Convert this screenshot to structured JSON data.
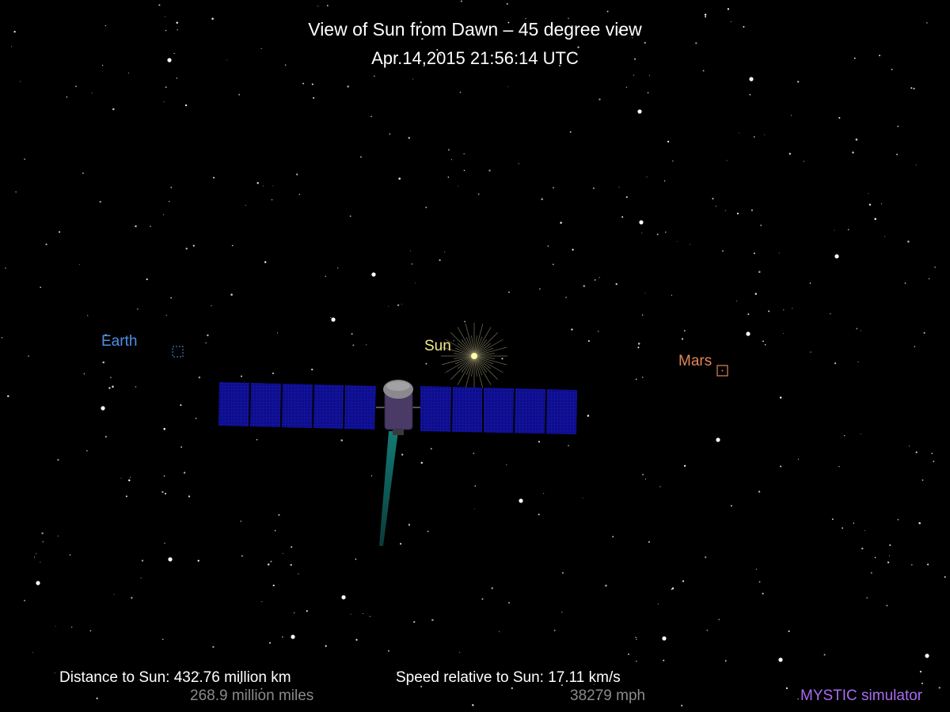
{
  "header": {
    "title": "View of Sun from Dawn – 45 degree view",
    "timestamp": "Apr.14,2015 21:56:14  UTC"
  },
  "labels": {
    "earth": "Earth",
    "sun": "Sun",
    "mars": "Mars"
  },
  "readouts": {
    "distance_km": "Distance to Sun: 432.76 million km",
    "distance_miles": "268.9 million miles",
    "speed_kms": "Speed relative to Sun: 17.11 km/s",
    "speed_mph": "38279 mph"
  },
  "credit": "MYSTIC simulator",
  "colors": {
    "background": "#000000",
    "earth": "#4f8fe8",
    "sun": "#f2e98a",
    "mars": "#e0855a",
    "solar_panel": "#0d0d8a",
    "spacecraft_body": "#4a3a66",
    "ion_beam": "#0f5c5a",
    "credit": "#a86cf0"
  }
}
